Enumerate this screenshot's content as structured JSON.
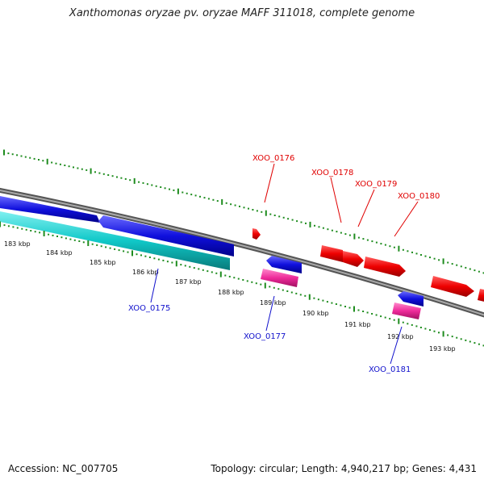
{
  "title": "Xanthomonas oryzae pv. oryzae MAFF 311018, complete genome",
  "footer": {
    "accession": "Accession: NC_007705",
    "summary": "Topology: circular; Length: 4,940,217 bp; Genes: 4,431"
  },
  "colors": {
    "forward_gene": "#ee0000",
    "reverse_gene": "#1010dd",
    "rna_pink": "#ee2a9a",
    "cyan_track": "#10c8c8",
    "backbone": "#888888",
    "scale_tick": "#1e8c1e"
  },
  "scale_labels": [
    "183 kbp",
    "184 kbp",
    "185 kbp",
    "186 kbp",
    "187 kbp",
    "188 kbp",
    "189 kbp",
    "190 kbp",
    "191 kbp",
    "192 kbp",
    "193 kbp"
  ],
  "gene_labels": {
    "red": [
      "XOO_0176",
      "XOO_0178",
      "XOO_0179",
      "XOO_0180"
    ],
    "blue": [
      "XOO_0175",
      "XOO_0177",
      "XOO_0181"
    ]
  }
}
